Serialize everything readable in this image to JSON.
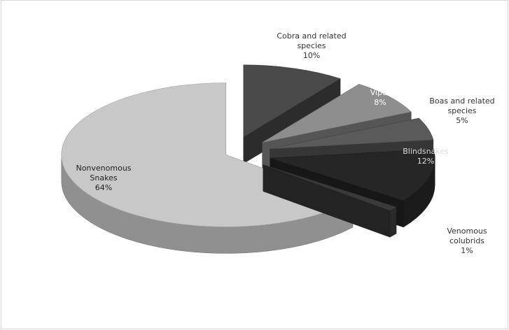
{
  "chart_data": {
    "type": "pie",
    "title": "",
    "style": "exploded 3D pie",
    "slices": [
      {
        "label_lines": [
          "Cobra and related",
          "species"
        ],
        "label": "Cobra and related species",
        "value": 10,
        "pct_text": "10%",
        "color": "#4a4a4a",
        "text_color": "#333333"
      },
      {
        "label_lines": [
          "Viper"
        ],
        "label": "Viper",
        "value": 8,
        "pct_text": "8%",
        "color": "#8e8e8e",
        "text_color": "#ffffff"
      },
      {
        "label_lines": [
          "Boas and related",
          "species"
        ],
        "label": "Boas and related species",
        "value": 5,
        "pct_text": "5%",
        "color": "#5a5a5a",
        "text_color": "#333333"
      },
      {
        "label_lines": [
          "Blindsnakes"
        ],
        "label": "Blindsnakes",
        "value": 12,
        "pct_text": "12%",
        "color": "#262626",
        "text_color": "#dddddd"
      },
      {
        "label_lines": [
          "Venomous",
          "colubrids"
        ],
        "label": "Venomous colubrids",
        "value": 1,
        "pct_text": "1%",
        "color": "#3a3a3a",
        "text_color": "#333333"
      },
      {
        "label_lines": [
          "Nonvenomous",
          "Snakes"
        ],
        "label": "Nonvenomous Snakes",
        "value": 64,
        "pct_text": "64%",
        "color": "#c8c8c8",
        "text_color": "#222222"
      }
    ]
  }
}
